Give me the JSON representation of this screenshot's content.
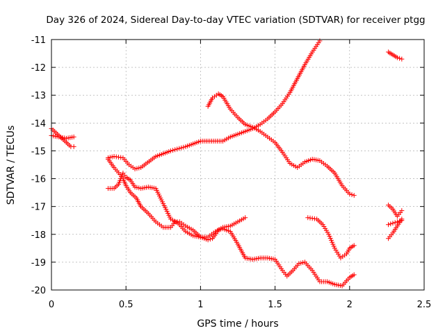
{
  "chart_data": {
    "type": "scatter",
    "title": "Day 326 of 2024, Sidereal Day-to-day VTEC variation (SDTVAR) for receiver ptgg",
    "xlabel": "GPS time / hours",
    "ylabel": "SDTVAR / TECUs",
    "xlim": [
      0,
      2.5
    ],
    "ylim": [
      -20,
      -11
    ],
    "xticks": [
      "0",
      "0.5",
      "1",
      "1.5",
      "2",
      "2.5"
    ],
    "yticks": [
      "-11",
      "-12",
      "-13",
      "-14",
      "-15",
      "-16",
      "-17",
      "-18",
      "-19",
      "-20"
    ],
    "grid": true,
    "marker": "+",
    "color": "#ff0000",
    "series": [
      {
        "points": [
          [
            0.0,
            -14.2
          ],
          [
            0.03,
            -14.35
          ],
          [
            0.06,
            -14.5
          ],
          [
            0.1,
            -14.7
          ],
          [
            0.13,
            -14.85
          ],
          [
            0.15,
            -14.85
          ]
        ]
      },
      {
        "points": [
          [
            0.0,
            -14.45
          ],
          [
            0.05,
            -14.5
          ],
          [
            0.1,
            -14.55
          ],
          [
            0.15,
            -14.5
          ]
        ]
      },
      {
        "points": [
          [
            0.38,
            -15.25
          ],
          [
            0.42,
            -15.2
          ],
          [
            0.48,
            -15.25
          ],
          [
            0.52,
            -15.5
          ],
          [
            0.56,
            -15.65
          ],
          [
            0.6,
            -15.6
          ],
          [
            0.7,
            -15.2
          ],
          [
            0.8,
            -15.0
          ],
          [
            0.9,
            -14.85
          ],
          [
            1.0,
            -14.65
          ],
          [
            1.05,
            -14.65
          ],
          [
            1.1,
            -14.65
          ],
          [
            1.15,
            -14.65
          ],
          [
            1.2,
            -14.5
          ],
          [
            1.3,
            -14.3
          ],
          [
            1.35,
            -14.2
          ],
          [
            1.4,
            -14.05
          ],
          [
            1.45,
            -13.85
          ],
          [
            1.5,
            -13.6
          ],
          [
            1.55,
            -13.3
          ],
          [
            1.6,
            -12.9
          ],
          [
            1.65,
            -12.4
          ],
          [
            1.7,
            -11.9
          ],
          [
            1.75,
            -11.45
          ],
          [
            1.8,
            -11.05
          ]
        ]
      },
      {
        "points": [
          [
            0.38,
            -16.35
          ],
          [
            0.42,
            -16.35
          ],
          [
            0.45,
            -16.2
          ],
          [
            0.48,
            -15.8
          ],
          [
            0.5,
            -15.95
          ],
          [
            0.53,
            -16.05
          ],
          [
            0.56,
            -16.3
          ],
          [
            0.6,
            -16.35
          ],
          [
            0.65,
            -16.3
          ],
          [
            0.7,
            -16.35
          ],
          [
            0.75,
            -16.9
          ],
          [
            0.8,
            -17.45
          ],
          [
            0.85,
            -17.6
          ],
          [
            0.9,
            -17.9
          ],
          [
            0.95,
            -18.05
          ],
          [
            1.0,
            -18.1
          ],
          [
            1.05,
            -18.1
          ],
          [
            1.1,
            -17.9
          ],
          [
            1.15,
            -17.75
          ],
          [
            1.2,
            -17.7
          ],
          [
            1.25,
            -17.55
          ],
          [
            1.3,
            -17.4
          ]
        ]
      },
      {
        "points": [
          [
            0.38,
            -15.3
          ],
          [
            0.42,
            -15.6
          ],
          [
            0.46,
            -15.85
          ],
          [
            0.48,
            -16.0
          ],
          [
            0.5,
            -16.25
          ],
          [
            0.53,
            -16.5
          ],
          [
            0.57,
            -16.7
          ],
          [
            0.6,
            -17.0
          ],
          [
            0.65,
            -17.25
          ],
          [
            0.7,
            -17.55
          ],
          [
            0.75,
            -17.75
          ],
          [
            0.8,
            -17.75
          ],
          [
            0.83,
            -17.55
          ],
          [
            0.86,
            -17.55
          ],
          [
            0.9,
            -17.7
          ],
          [
            0.95,
            -17.85
          ],
          [
            1.0,
            -18.1
          ],
          [
            1.05,
            -18.2
          ],
          [
            1.08,
            -18.15
          ],
          [
            1.12,
            -17.85
          ],
          [
            1.15,
            -17.8
          ],
          [
            1.2,
            -17.9
          ],
          [
            1.25,
            -18.35
          ],
          [
            1.3,
            -18.85
          ],
          [
            1.35,
            -18.9
          ],
          [
            1.4,
            -18.85
          ],
          [
            1.45,
            -18.85
          ],
          [
            1.5,
            -18.9
          ],
          [
            1.55,
            -19.3
          ],
          [
            1.58,
            -19.5
          ],
          [
            1.62,
            -19.3
          ],
          [
            1.66,
            -19.05
          ],
          [
            1.7,
            -19.0
          ],
          [
            1.75,
            -19.3
          ],
          [
            1.8,
            -19.7
          ],
          [
            1.85,
            -19.7
          ],
          [
            1.9,
            -19.8
          ],
          [
            1.95,
            -19.85
          ],
          [
            2.0,
            -19.55
          ],
          [
            2.03,
            -19.45
          ]
        ]
      },
      {
        "points": [
          [
            1.05,
            -13.4
          ],
          [
            1.08,
            -13.1
          ],
          [
            1.12,
            -12.95
          ],
          [
            1.15,
            -13.05
          ],
          [
            1.2,
            -13.5
          ],
          [
            1.25,
            -13.8
          ],
          [
            1.3,
            -14.05
          ],
          [
            1.35,
            -14.15
          ],
          [
            1.4,
            -14.3
          ],
          [
            1.45,
            -14.5
          ],
          [
            1.5,
            -14.7
          ],
          [
            1.55,
            -15.05
          ],
          [
            1.6,
            -15.45
          ],
          [
            1.65,
            -15.6
          ],
          [
            1.7,
            -15.4
          ],
          [
            1.75,
            -15.3
          ],
          [
            1.8,
            -15.35
          ],
          [
            1.85,
            -15.55
          ],
          [
            1.9,
            -15.8
          ],
          [
            1.95,
            -16.25
          ],
          [
            2.0,
            -16.55
          ],
          [
            2.03,
            -16.6
          ]
        ]
      },
      {
        "points": [
          [
            1.72,
            -17.4
          ],
          [
            1.78,
            -17.45
          ],
          [
            1.82,
            -17.65
          ],
          [
            1.86,
            -18.0
          ],
          [
            1.9,
            -18.5
          ],
          [
            1.94,
            -18.85
          ],
          [
            1.98,
            -18.7
          ],
          [
            2.0,
            -18.5
          ],
          [
            2.03,
            -18.4
          ]
        ]
      },
      {
        "points": [
          [
            2.26,
            -11.45
          ],
          [
            2.29,
            -11.55
          ],
          [
            2.32,
            -11.65
          ],
          [
            2.35,
            -11.7
          ]
        ]
      },
      {
        "points": [
          [
            2.26,
            -16.95
          ],
          [
            2.29,
            -17.1
          ],
          [
            2.32,
            -17.35
          ],
          [
            2.35,
            -17.15
          ]
        ]
      },
      {
        "points": [
          [
            2.26,
            -17.65
          ],
          [
            2.29,
            -17.6
          ],
          [
            2.32,
            -17.55
          ],
          [
            2.35,
            -17.5
          ]
        ]
      },
      {
        "points": [
          [
            2.26,
            -18.15
          ],
          [
            2.29,
            -17.95
          ],
          [
            2.32,
            -17.7
          ],
          [
            2.35,
            -17.45
          ]
        ]
      }
    ]
  }
}
